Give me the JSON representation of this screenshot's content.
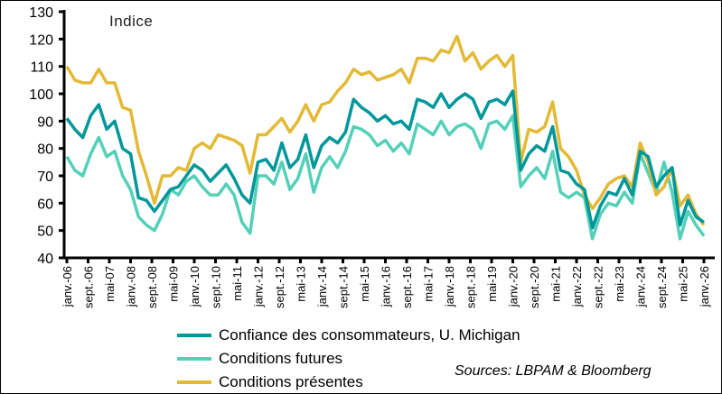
{
  "chart_data": {
    "type": "line",
    "unit_label": "Indice",
    "ylim": [
      40,
      130
    ],
    "yticks": [
      40,
      50,
      60,
      70,
      80,
      90,
      100,
      110,
      120,
      130
    ],
    "xrange": [
      "2006-01",
      "2026-01"
    ],
    "xtick_labels": [
      "janv.-06",
      "sept.-06",
      "mai-07",
      "janv.-08",
      "sept.-08",
      "mai-09",
      "janv.-10",
      "sept.-10",
      "mai-11",
      "janv.-12",
      "sept.-12",
      "mai-13",
      "janv.-14",
      "sept.-14",
      "mai-15",
      "janv.-16",
      "sept.-16",
      "mai-17",
      "janv.-18",
      "sept.-18",
      "mai-19",
      "janv.-20",
      "sept.-20",
      "mai-21",
      "janv.-22",
      "sept.-22",
      "mai-23",
      "janv.-24",
      "sept.-24",
      "mai-25",
      "janv.-26"
    ],
    "x_frequency": "quarterly, starting janv.-06",
    "series": [
      {
        "name": "Confiance des consommateurs, U. Michigan",
        "color": "#00979a",
        "values": [
          91,
          87,
          84,
          92,
          96,
          87,
          90,
          80,
          78,
          62,
          61,
          57,
          61,
          65,
          66,
          70,
          74,
          72,
          68,
          71,
          74,
          69,
          63,
          60,
          75,
          76,
          72,
          82,
          73,
          76,
          85,
          73,
          81,
          84,
          82,
          86,
          98,
          95,
          93,
          90,
          92,
          89,
          90,
          87,
          98,
          97,
          95,
          100,
          95,
          98,
          100,
          98,
          91,
          97,
          98,
          96,
          101,
          72,
          78,
          81,
          79,
          88,
          72,
          71,
          67,
          65,
          51,
          59,
          64,
          63,
          69,
          63,
          79,
          77,
          66,
          70,
          73,
          52,
          61,
          55,
          53
        ]
      },
      {
        "name": "Conditions futures",
        "color": "#55d0b8",
        "values": [
          77,
          72,
          70,
          78,
          84,
          77,
          79,
          70,
          65,
          55,
          52,
          50,
          56,
          65,
          63,
          68,
          70,
          66,
          63,
          63,
          67,
          63,
          53,
          49,
          70,
          70,
          67,
          75,
          65,
          69,
          78,
          64,
          73,
          77,
          73,
          79,
          88,
          87,
          85,
          81,
          83,
          79,
          82,
          78,
          89,
          87,
          85,
          90,
          85,
          88,
          89,
          87,
          80,
          89,
          90,
          87,
          92,
          66,
          70,
          73,
          69,
          79,
          64,
          62,
          64,
          62,
          47,
          56,
          60,
          59,
          64,
          60,
          78,
          71,
          64,
          75,
          64,
          47,
          57,
          52,
          48
        ]
      },
      {
        "name": "Conditions présentes",
        "color": "#e3b935",
        "values": [
          110,
          105,
          104,
          104,
          109,
          104,
          104,
          95,
          94,
          79,
          70,
          60,
          70,
          70,
          73,
          72,
          80,
          82,
          80,
          85,
          84,
          83,
          81,
          71,
          85,
          85,
          88,
          91,
          86,
          90,
          96,
          90,
          96,
          97,
          101,
          104,
          109,
          107,
          108,
          105,
          106,
          107,
          109,
          104,
          113,
          113,
          112,
          116,
          115,
          121,
          112,
          115,
          109,
          112,
          114,
          110,
          114,
          75,
          87,
          86,
          88,
          97,
          80,
          77,
          72,
          63,
          58,
          62,
          67,
          69,
          70,
          66,
          82,
          75,
          63,
          66,
          73,
          59,
          63,
          56,
          52
        ]
      }
    ]
  },
  "source": "Sources: LBPAM & Bloomberg"
}
